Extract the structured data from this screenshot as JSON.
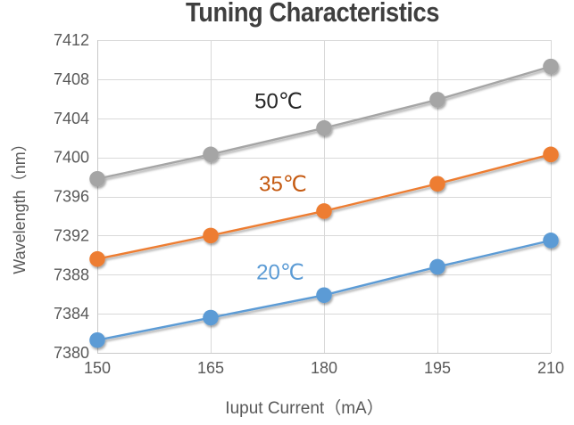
{
  "chart": {
    "title": "Tuning Characteristics",
    "x_axis_title": "Iuput Current（mA）",
    "y_axis_title": "Wavelength（nm）",
    "colors": {
      "gridline": "#d9d9d9",
      "axis_line": "#c9c9c9",
      "tick_text": "#595959",
      "title_text": "#3f3f3f",
      "background": "#ffffff"
    }
  },
  "chart_data": {
    "type": "line",
    "title": "Tuning Characteristics",
    "xlabel": "Iuput Current（mA）",
    "ylabel": "Wavelength（nm）",
    "x": [
      150,
      165,
      180,
      195,
      210
    ],
    "x_tick_labels": [
      "150",
      "165",
      "180",
      "195",
      "210"
    ],
    "y_ticks": [
      7380,
      7384,
      7388,
      7392,
      7396,
      7400,
      7404,
      7408,
      7412
    ],
    "xlim": [
      150,
      210
    ],
    "ylim": [
      7380,
      7412
    ],
    "grid": true,
    "legend": "inline-labels",
    "marker": "circle",
    "series": [
      {
        "name": "50°C",
        "label": "50℃",
        "color": "#a5a5a5",
        "label_color": "#262626",
        "values": [
          7397.8,
          7400.3,
          7403.0,
          7405.9,
          7409.3
        ]
      },
      {
        "name": "35°C",
        "label": "35℃",
        "color": "#ed7d31",
        "label_color": "#c55a11",
        "values": [
          7389.6,
          7392.0,
          7394.5,
          7397.3,
          7400.3
        ]
      },
      {
        "name": "20°C",
        "label": "20℃",
        "color": "#5b9bd5",
        "label_color": "#5b9bd5",
        "values": [
          7381.3,
          7383.6,
          7385.9,
          7388.8,
          7391.5
        ]
      }
    ]
  }
}
